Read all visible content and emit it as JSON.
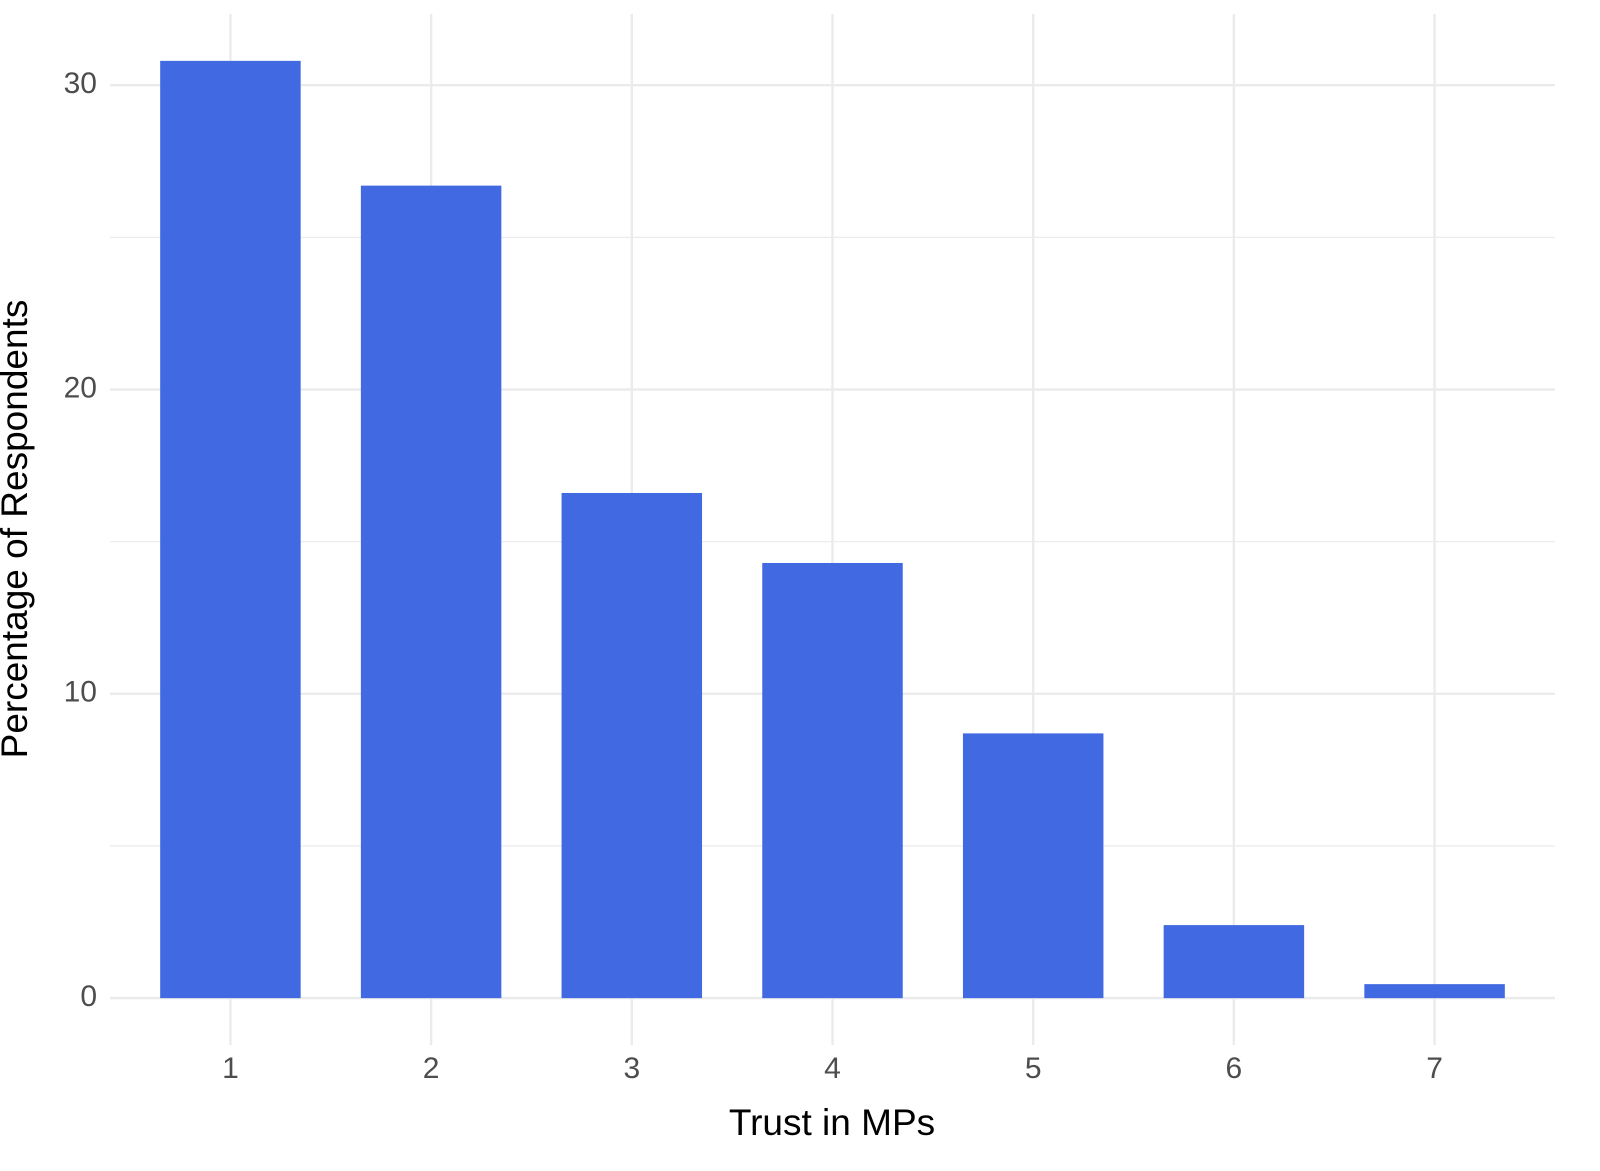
{
  "chart_data": {
    "type": "bar",
    "x_label": "Trust in MPs",
    "y_label": "Percentage of Respondents",
    "categories": [
      "1",
      "2",
      "3",
      "4",
      "5",
      "6",
      "7"
    ],
    "values": [
      30.8,
      26.7,
      16.6,
      14.3,
      8.7,
      2.4,
      0.46
    ],
    "color": "#4169e1",
    "ylim": [
      -1.54,
      32.34
    ],
    "yticks": [
      0,
      10,
      20,
      30
    ],
    "yminor": [
      5,
      15,
      25
    ],
    "grid": true
  }
}
